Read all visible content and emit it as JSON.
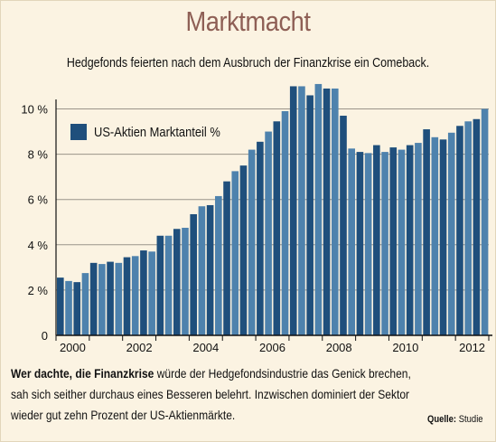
{
  "title": "Marktmacht",
  "subtitle": "Hedgefonds feierten nach dem Ausbruch der Finanzkrise ein Comeback.",
  "legend_label": "US-Aktien Marktanteil %",
  "caption": {
    "line1_bold": "Wer dachte, die Finanzkrise",
    "line1_rest": " würde der Hedgefondsindustrie das Genick brechen,",
    "line2": "sah sich seither durchaus eines Besseren belehrt. Inzwischen dominiert der Sektor",
    "line3": "wieder gut zehn Prozent der US-Aktienmärkte."
  },
  "source": {
    "label": "Quelle:",
    "value": "Studie"
  },
  "colors": {
    "bar_dark": "#1f4f7c",
    "bar_light": "#4e82ad",
    "background": "#fbf3e2",
    "title": "#8e5f55"
  },
  "chart_data": {
    "type": "bar",
    "title": "Marktmacht",
    "xlabel": "",
    "ylabel": "",
    "ylim": [
      0,
      11
    ],
    "xlim": [
      2000,
      2013
    ],
    "yticks": [
      0,
      2,
      4,
      6,
      8,
      10
    ],
    "ytick_labels": [
      "0",
      "2 %",
      "4 %",
      "6 %",
      "8 %",
      "10 %"
    ],
    "xtick_labels": [
      "2000",
      "2002",
      "2004",
      "2006",
      "2008",
      "2010",
      "2012"
    ],
    "grid": true,
    "legend": "top-left",
    "series": [
      {
        "name": "US-Aktien Marktanteil %",
        "values": [
          2.55,
          2.4,
          2.35,
          2.75,
          3.2,
          3.15,
          3.25,
          3.2,
          3.45,
          3.5,
          3.75,
          3.7,
          4.4,
          4.4,
          4.7,
          4.75,
          5.35,
          5.7,
          5.75,
          6.15,
          6.8,
          7.25,
          7.5,
          8.2,
          8.55,
          9.0,
          9.45,
          9.9,
          11.0,
          11.0,
          10.6,
          11.1,
          10.9,
          10.9,
          9.7,
          8.25,
          8.1,
          8.05,
          8.4,
          8.1,
          8.3,
          8.2,
          8.4,
          8.5,
          9.1,
          8.75,
          8.65,
          8.95,
          9.25,
          9.45,
          9.55,
          10.0
        ]
      }
    ]
  }
}
